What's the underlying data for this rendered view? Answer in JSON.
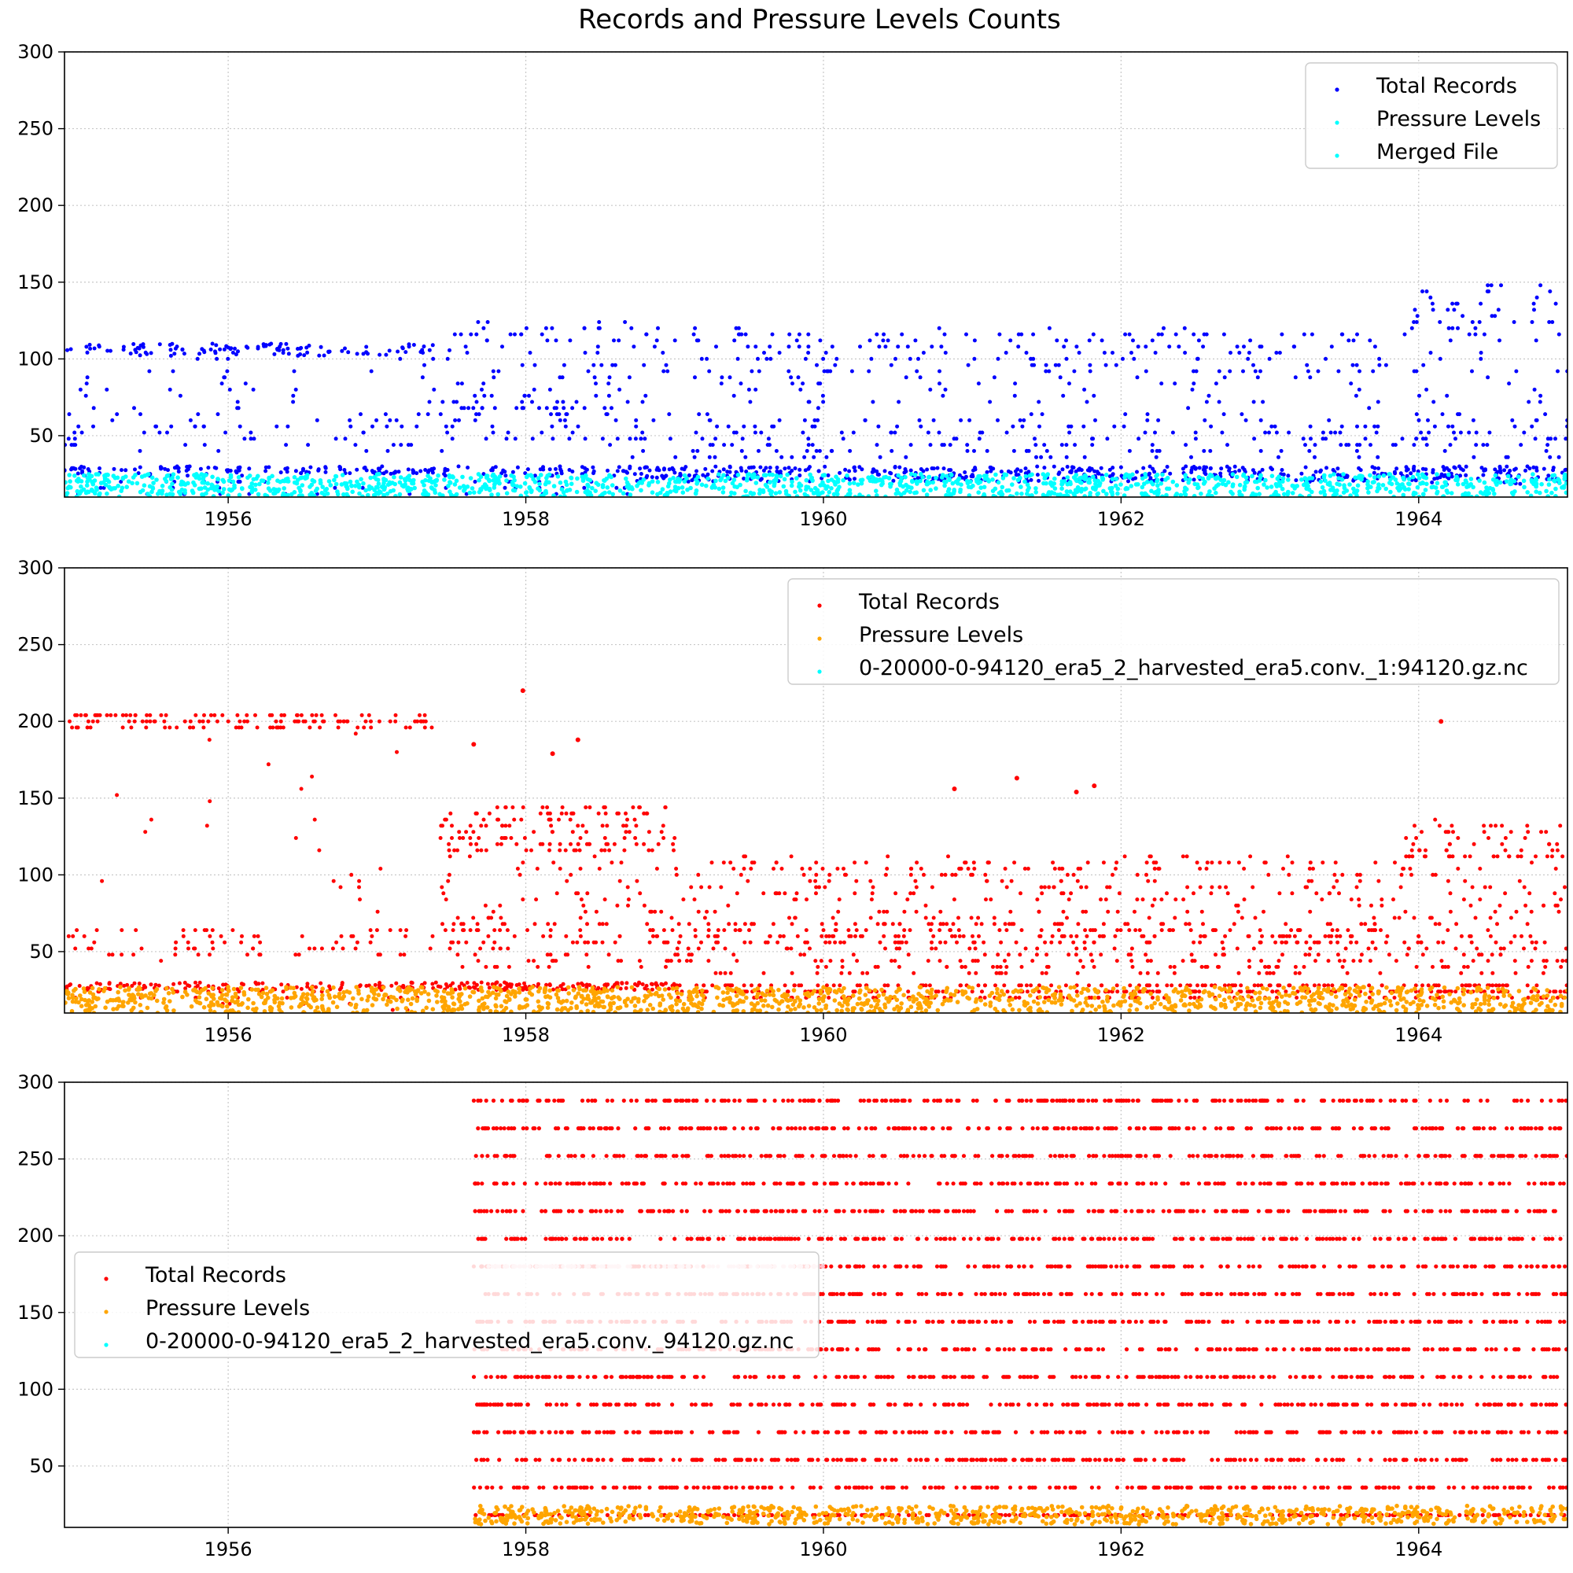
{
  "figure": {
    "title": "Records and Pressure Levels Counts"
  },
  "chart_data": [
    {
      "type": "scatter",
      "title": "",
      "xlabel": "",
      "ylabel": "",
      "xlim": [
        1954.9,
        1965.0
      ],
      "ylim": [
        10,
        300
      ],
      "x_ticks": [
        1956,
        1958,
        1960,
        1962,
        1964
      ],
      "y_ticks": [
        50,
        100,
        150,
        200,
        250,
        300
      ],
      "grid": true,
      "legend_position": "top-right",
      "legend": [
        {
          "label": "Total Records",
          "color": "#0000ff"
        },
        {
          "label": "Pressure Levels",
          "color": "#00ffff"
        },
        {
          "label": "Merged File",
          "color": "#00ffff"
        }
      ],
      "series": [
        {
          "role": "total_records",
          "color": "#0000ff",
          "segments": [
            {
              "x_start": 1954.9,
              "x_end": 1957.5,
              "bands": [
                [
                  102,
                  110,
                  0.9
                ],
                [
                  55,
                  102,
                  0.35
                ],
                [
                  40,
                  65,
                  0.5
                ],
                [
                  25,
                  30,
                  0.8
                ],
                [
                  12,
                  25,
                  0.3
                ]
              ],
              "density": 380
            },
            {
              "x_start": 1957.5,
              "x_end": 1958.7,
              "bands": [
                [
                  95,
                  125,
                  0.6
                ],
                [
                  60,
                  100,
                  0.5
                ],
                [
                  45,
                  75,
                  0.6
                ],
                [
                  25,
                  30,
                  0.8
                ],
                [
                  12,
                  25,
                  0.3
                ]
              ],
              "density": 200
            },
            {
              "x_start": 1958.7,
              "x_end": 1963.9,
              "bands": [
                [
                  90,
                  120,
                  0.7
                ],
                [
                  55,
                  95,
                  0.35
                ],
                [
                  35,
                  60,
                  0.8
                ],
                [
                  25,
                  30,
                  0.8
                ],
                [
                  20,
                  25,
                  0.8
                ]
              ],
              "density": 900
            },
            {
              "x_start": 1963.9,
              "x_end": 1965.0,
              "bands": [
                [
                  115,
                  148,
                  0.7
                ],
                [
                  70,
                  115,
                  0.3
                ],
                [
                  35,
                  65,
                  0.8
                ],
                [
                  25,
                  30,
                  0.8
                ],
                [
                  18,
                  25,
                  0.8
                ]
              ],
              "density": 220
            }
          ]
        },
        {
          "role": "pressure_levels",
          "color": "#00ffff",
          "segments": [
            {
              "x_start": 1954.9,
              "x_end": 1965.0,
              "bands": [
                [
                  10,
                  25,
                  1.0
                ]
              ],
              "density": 1400
            }
          ]
        }
      ]
    },
    {
      "type": "scatter",
      "title": "",
      "xlabel": "",
      "ylabel": "",
      "xlim": [
        1954.9,
        1965.0
      ],
      "ylim": [
        10,
        300
      ],
      "x_ticks": [
        1956,
        1958,
        1960,
        1962,
        1964
      ],
      "y_ticks": [
        50,
        100,
        150,
        200,
        250,
        300
      ],
      "grid": true,
      "legend_position": "top-right",
      "legend": [
        {
          "label": "Total Records",
          "color": "#ff0000"
        },
        {
          "label": "Pressure Levels",
          "color": "#ffa500"
        },
        {
          "label": "0-20000-0-94120_era5_2_harvested_era5.conv._1:94120.gz.nc",
          "color": "#00ffff"
        }
      ],
      "series": [
        {
          "role": "total_records",
          "color": "#ff0000",
          "segments": [
            {
              "x_start": 1954.9,
              "x_end": 1957.4,
              "bands": [
                [
                  195,
                  205,
                  0.9
                ],
                [
                  60,
                  195,
                  0.25
                ],
                [
                  45,
                  65,
                  0.6
                ],
                [
                  25,
                  30,
                  0.8
                ],
                [
                  12,
                  25,
                  0.3
                ]
              ],
              "density": 380
            },
            {
              "x_start": 1957.4,
              "x_end": 1959.0,
              "bands": [
                [
                  115,
                  145,
                  0.8
                ],
                [
                  60,
                  120,
                  0.5
                ],
                [
                  40,
                  70,
                  0.6
                ],
                [
                  25,
                  30,
                  0.8
                ]
              ],
              "density": 420
            },
            {
              "x_start": 1959.0,
              "x_end": 1963.9,
              "bands": [
                [
                  85,
                  112,
                  0.6
                ],
                [
                  55,
                  85,
                  0.5
                ],
                [
                  35,
                  70,
                  0.8
                ],
                [
                  20,
                  30,
                  0.8
                ]
              ],
              "density": 1000
            },
            {
              "x_start": 1963.9,
              "x_end": 1965.0,
              "bands": [
                [
                  110,
                  135,
                  0.7
                ],
                [
                  70,
                  110,
                  0.4
                ],
                [
                  35,
                  70,
                  0.8
                ],
                [
                  20,
                  30,
                  0.8
                ]
              ],
              "density": 260
            }
          ],
          "outliers": [
            [
              1957.98,
              220
            ],
            [
              1958.18,
              179
            ],
            [
              1958.35,
              188
            ],
            [
              1957.65,
              185
            ],
            [
              1960.88,
              156
            ],
            [
              1961.3,
              163
            ],
            [
              1961.7,
              154
            ],
            [
              1961.82,
              158
            ],
            [
              1964.15,
              200
            ]
          ]
        },
        {
          "role": "pressure_levels",
          "color": "#ffa500",
          "segments": [
            {
              "x_start": 1954.9,
              "x_end": 1965.0,
              "bands": [
                [
                  10,
                  27,
                  1.0
                ]
              ],
              "density": 1400
            }
          ]
        }
      ]
    },
    {
      "type": "scatter",
      "title": "",
      "xlabel": "",
      "ylabel": "",
      "xlim": [
        1954.9,
        1965.0
      ],
      "ylim": [
        10,
        300
      ],
      "x_ticks": [
        1956,
        1958,
        1960,
        1962,
        1964
      ],
      "y_ticks": [
        50,
        100,
        150,
        200,
        250,
        300
      ],
      "grid": true,
      "legend_position": "center-left",
      "legend": [
        {
          "label": "Total Records",
          "color": "#ff0000"
        },
        {
          "label": "Pressure Levels",
          "color": "#ffa500"
        },
        {
          "label": "0-20000-0-94120_era5_2_harvested_era5.conv._94120.gz.nc",
          "color": "#00ffff"
        }
      ],
      "series": [
        {
          "role": "total_records_levels",
          "color": "#ff0000",
          "x_start": 1957.65,
          "x_end": 1965.0,
          "levels": [
            18,
            36,
            54,
            72,
            90,
            108,
            126,
            144,
            162,
            180,
            198,
            216,
            234,
            252,
            270,
            288
          ],
          "density_per_level": 260
        },
        {
          "role": "faint_level",
          "color": "#ffc0cb",
          "x_start": 1957.65,
          "x_end": 1960.0,
          "levels": [
            180
          ],
          "density_per_level": 110
        },
        {
          "role": "pressure_levels",
          "color": "#ffa500",
          "segments": [
            {
              "x_start": 1957.65,
              "x_end": 1965.0,
              "bands": [
                [
                  12,
                  24,
                  1.0
                ]
              ],
              "density": 900
            }
          ]
        }
      ]
    }
  ]
}
